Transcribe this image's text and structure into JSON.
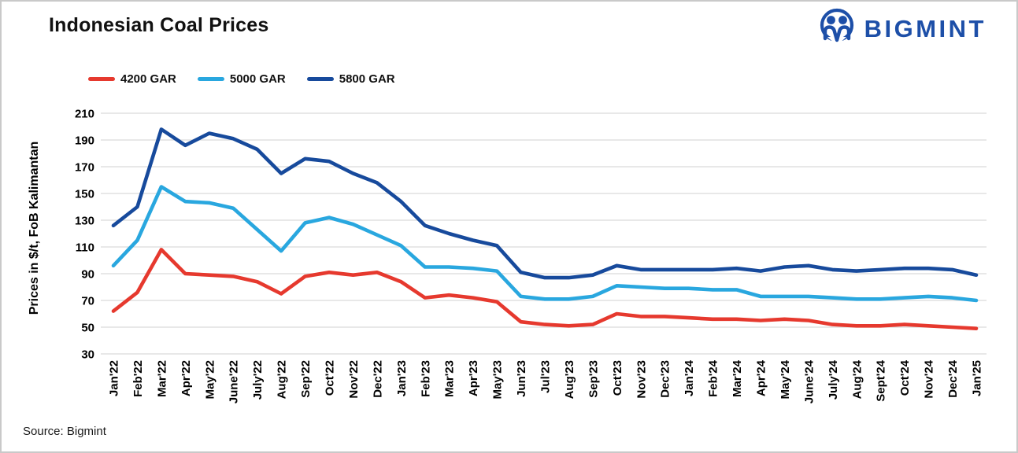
{
  "header": {
    "title": "Indonesian Coal Prices",
    "logo_text": "BIGMINT",
    "logo_color": "#1d4fa8"
  },
  "source": "Source: Bigmint",
  "chart_data": {
    "type": "line",
    "title": "Indonesian Coal Prices",
    "ylabel": "Prices in $/t, FoB Kalimantan",
    "xlabel": "",
    "ylim": [
      30,
      210
    ],
    "yticks": [
      30,
      50,
      70,
      90,
      110,
      130,
      150,
      170,
      190,
      210
    ],
    "grid": "horizontal-only",
    "grid_color": "#d9d9d9",
    "legend_position": "top-left",
    "categories": [
      "Jan'22",
      "Feb'22",
      "Mar'22",
      "Apr'22",
      "May'22",
      "June'22",
      "July'22",
      "Aug'22",
      "Sep'22",
      "Oct'22",
      "Nov'22",
      "Dec'22",
      "Jan'23",
      "Feb'23",
      "Mar'23",
      "Apr'23",
      "May'23",
      "Jun'23",
      "Jul'23",
      "Aug'23",
      "Sep'23",
      "Oct'23",
      "Nov'23",
      "Dec'23",
      "Jan'24",
      "Feb'24",
      "Mar'24",
      "Apr'24",
      "May'24",
      "June'24",
      "July'24",
      "Aug'24",
      "Sept'24",
      "Oct'24",
      "Nov'24",
      "Dec'24",
      "Jan'25"
    ],
    "series": [
      {
        "name": "4200 GAR",
        "color": "#e6392e",
        "values": [
          62,
          76,
          108,
          90,
          89,
          88,
          84,
          75,
          88,
          91,
          89,
          91,
          84,
          72,
          74,
          72,
          69,
          54,
          52,
          51,
          52,
          60,
          58,
          58,
          57,
          56,
          56,
          55,
          56,
          55,
          52,
          51,
          51,
          52,
          51,
          50,
          49
        ]
      },
      {
        "name": "5000 GAR",
        "color": "#29a7df",
        "values": [
          96,
          115,
          155,
          144,
          143,
          139,
          123,
          107,
          128,
          132,
          127,
          119,
          111,
          95,
          95,
          94,
          92,
          73,
          71,
          71,
          73,
          81,
          80,
          79,
          79,
          78,
          78,
          73,
          73,
          73,
          72,
          71,
          71,
          72,
          73,
          72,
          70
        ]
      },
      {
        "name": "5800 GAR",
        "color": "#174a9c",
        "values": [
          126,
          140,
          198,
          186,
          195,
          191,
          183,
          165,
          176,
          174,
          165,
          158,
          144,
          126,
          120,
          115,
          111,
          91,
          87,
          87,
          89,
          96,
          93,
          93,
          93,
          93,
          94,
          92,
          95,
          96,
          93,
          92,
          93,
          94,
          94,
          93,
          89
        ]
      }
    ]
  }
}
